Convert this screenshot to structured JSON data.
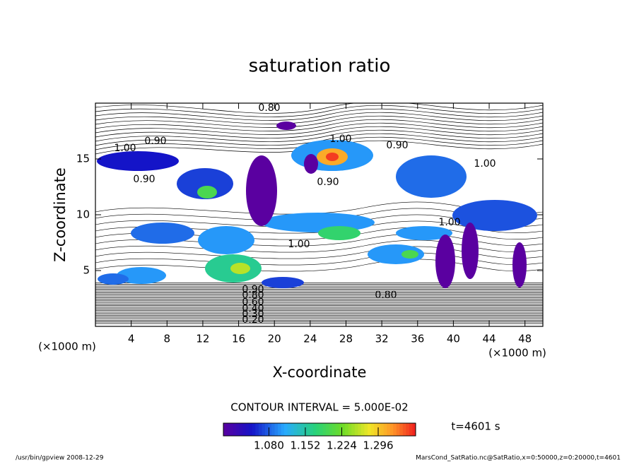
{
  "chart_data": {
    "type": "contour",
    "title": "saturation ratio",
    "x_label": "X-coordinate",
    "y_label": "Z-coordinate",
    "x_unit": "(×1000 m)",
    "y_unit": "(×1000 m)",
    "xlim": [
      0,
      50
    ],
    "xticks": [
      4,
      8,
      12,
      16,
      20,
      24,
      28,
      32,
      36,
      40,
      44,
      48
    ],
    "ylim": [
      0,
      20
    ],
    "yticks": [
      5,
      10,
      15
    ],
    "contour_labels": [
      {
        "value": 0.8,
        "label": "0.80"
      },
      {
        "value": 0.9,
        "label": "0.90"
      },
      {
        "value": 1.0,
        "label": "1.00"
      },
      {
        "value": 1.0,
        "label": "1.00"
      },
      {
        "value": 0.9,
        "label": "0.90"
      },
      {
        "value": 1.0,
        "label": "1.00"
      },
      {
        "value": 0.9,
        "label": "0.90"
      },
      {
        "value": 0.9,
        "label": "0.90"
      },
      {
        "value": 1.0,
        "label": "1.00"
      },
      {
        "value": 1.0,
        "label": "1.00"
      },
      {
        "value": 0.9,
        "label": "0.90"
      },
      {
        "value": 0.8,
        "label": "0.80"
      },
      {
        "value": 0.6,
        "label": "0.60"
      },
      {
        "value": 0.4,
        "label": "0.40"
      },
      {
        "value": 0.3,
        "label": "0.30"
      },
      {
        "value": 0.2,
        "label": "0.20"
      },
      {
        "value": 0.8,
        "label": "0.80"
      }
    ],
    "contour_interval_text": "CONTOUR INTERVAL = 5.000E-02",
    "clim": [
      0.99,
      1.37
    ],
    "cticks": [
      {
        "value": 1.08,
        "label": "1.080"
      },
      1.152,
      1.224,
      1.296
    ],
    "time_text": "t=4601 s",
    "footer_left": "/usr/bin/gpview  2008-12-29",
    "footer_right": "MarsCond_SatRatio.nc@SatRatio,x=0:50000,z=0:20000,t=4601"
  }
}
